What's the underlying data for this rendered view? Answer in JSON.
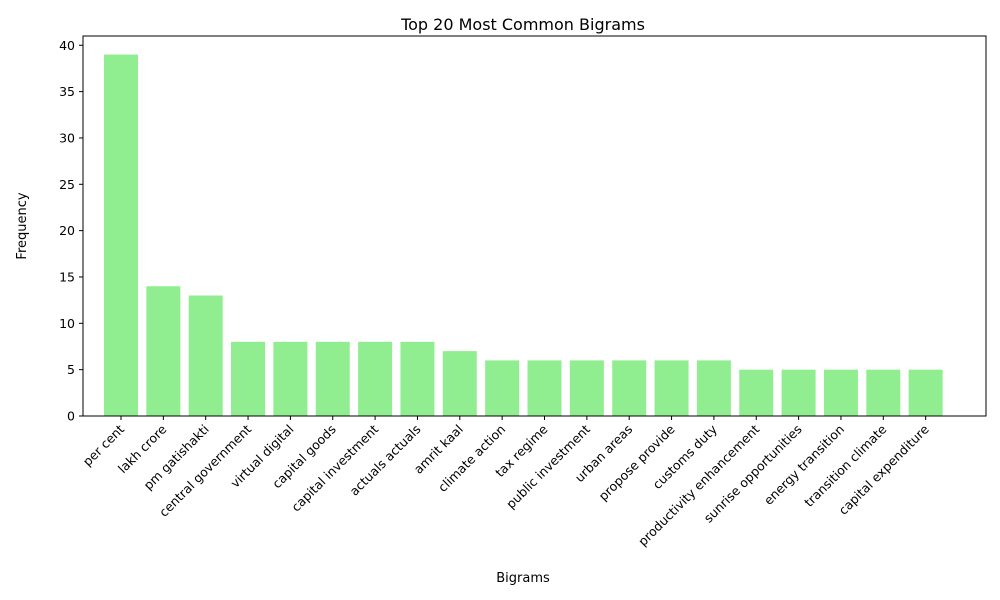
{
  "chart_data": {
    "type": "bar",
    "title": "Top 20 Most Common Bigrams",
    "xlabel": "Bigrams",
    "ylabel": "Frequency",
    "ylim": [
      0,
      41
    ],
    "yticks": [
      0,
      5,
      10,
      15,
      20,
      25,
      30,
      35,
      40
    ],
    "bar_color": "#90ee90",
    "grid": false,
    "categories": [
      "per cent",
      "lakh crore",
      "pm gatishakti",
      "central government",
      "virtual digital",
      "capital goods",
      "capital investment",
      "actuals actuals",
      "amrit kaal",
      "climate action",
      "tax regime",
      "public investment",
      "urban areas",
      "propose provide",
      "customs duty",
      "productivity enhancement",
      "sunrise opportunities",
      "energy transition",
      "transition climate",
      "capital expenditure"
    ],
    "values": [
      39,
      14,
      13,
      8,
      8,
      8,
      8,
      8,
      7,
      6,
      6,
      6,
      6,
      6,
      6,
      5,
      5,
      5,
      5,
      5
    ]
  }
}
